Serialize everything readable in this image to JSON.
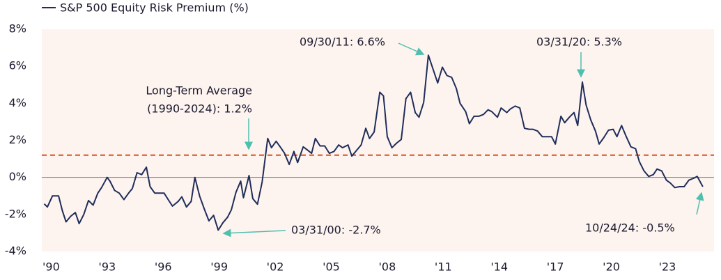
{
  "chart_data": {
    "type": "line",
    "series": [
      {
        "name": "S&P 500 Equity Risk Premium (%)",
        "color": "#1f2d5a",
        "x": [
          1989.63,
          1989.8,
          1990.07,
          1990.4,
          1990.6,
          1990.8,
          1991.05,
          1991.3,
          1991.5,
          1991.75,
          1992.0,
          1992.25,
          1992.5,
          1992.7,
          1993.0,
          1993.15,
          1993.4,
          1993.65,
          1993.9,
          1994.15,
          1994.35,
          1994.6,
          1994.85,
          1995.1,
          1995.3,
          1995.55,
          1995.8,
          1996.05,
          1996.3,
          1996.5,
          1996.8,
          1997.0,
          1997.25,
          1997.5,
          1997.7,
          1997.95,
          1998.2,
          1998.45,
          1998.7,
          1998.95,
          1999.2,
          1999.45,
          1999.65,
          1999.9,
          2000.15,
          2000.3,
          2000.6,
          2000.8,
          2001.05,
          2001.3,
          2001.6,
          2001.8,
          2002.05,
          2002.3,
          2002.5,
          2002.75,
          2003.0,
          2003.2,
          2003.5,
          2003.7,
          2003.95,
          2004.15,
          2004.4,
          2004.65,
          2004.9,
          2005.15,
          2005.4,
          2005.6,
          2005.9,
          2006.1,
          2006.35,
          2006.6,
          2006.85,
          2007.05,
          2007.3,
          2007.6,
          2007.8,
          2008.0,
          2008.25,
          2008.5,
          2008.75,
          2009.0,
          2009.25,
          2009.5,
          2009.7,
          2009.95,
          2010.2,
          2010.45,
          2010.7,
          2010.95,
          2011.2,
          2011.45,
          2011.7,
          2011.9,
          2012.2,
          2012.4,
          2012.65,
          2012.9,
          2013.15,
          2013.4,
          2013.6,
          2013.9,
          2014.1,
          2014.4,
          2014.6,
          2014.85,
          2015.1,
          2015.35,
          2015.6,
          2015.8,
          2016.05,
          2016.3,
          2016.55,
          2016.8,
          2017.0,
          2017.3,
          2017.5,
          2017.75,
          2018.0,
          2018.2,
          2018.45,
          2018.65,
          2018.9,
          2019.15,
          2019.35,
          2019.6,
          2019.85,
          2020.1,
          2020.3,
          2020.55,
          2020.8,
          2021.05,
          2021.3,
          2021.5,
          2021.75,
          2022.0,
          2022.25,
          2022.45,
          2022.7,
          2022.95,
          2023.15,
          2023.4,
          2023.65,
          2023.9,
          2024.15,
          2024.4,
          2024.6,
          2024.9
        ],
        "values": [
          -1.43,
          -1.6,
          -1.0,
          -1.0,
          -1.8,
          -2.4,
          -2.1,
          -1.9,
          -2.5,
          -2.0,
          -1.25,
          -1.5,
          -0.85,
          -0.55,
          0.0,
          -0.2,
          -0.7,
          -0.85,
          -1.2,
          -0.85,
          -0.6,
          0.25,
          0.15,
          0.55,
          -0.5,
          -0.85,
          -0.85,
          -0.85,
          -1.25,
          -1.55,
          -1.3,
          -1.05,
          -1.6,
          -1.3,
          0.0,
          -1.0,
          -1.7,
          -2.35,
          -2.05,
          -2.85,
          -2.45,
          -2.15,
          -1.75,
          -0.8,
          -0.2,
          -1.1,
          0.1,
          -1.15,
          -1.45,
          -0.25,
          2.1,
          1.6,
          1.95,
          1.6,
          1.3,
          0.7,
          1.4,
          0.8,
          1.65,
          1.5,
          1.3,
          2.1,
          1.7,
          1.7,
          1.3,
          1.4,
          1.75,
          1.6,
          1.75,
          1.15,
          1.45,
          1.75,
          2.65,
          2.1,
          2.45,
          4.6,
          4.4,
          2.2,
          1.6,
          1.85,
          2.05,
          4.25,
          4.6,
          3.5,
          3.25,
          4.05,
          6.6,
          5.85,
          5.1,
          5.95,
          5.5,
          5.4,
          4.8,
          4.0,
          3.55,
          2.9,
          3.3,
          3.3,
          3.4,
          3.65,
          3.55,
          3.25,
          3.75,
          3.5,
          3.7,
          3.85,
          3.75,
          2.65,
          2.6,
          2.6,
          2.5,
          2.2,
          2.2,
          2.2,
          1.8,
          3.3,
          2.95,
          3.25,
          3.5,
          2.8,
          5.15,
          3.9,
          3.1,
          2.5,
          1.8,
          2.15,
          2.55,
          2.6,
          2.2,
          2.8,
          2.2,
          1.65,
          1.55,
          0.85,
          0.35,
          0.05,
          0.15,
          0.45,
          0.35,
          -0.15,
          -0.3,
          -0.55,
          -0.5,
          -0.5,
          -0.15,
          -0.05,
          0.05,
          -0.5
        ]
      }
    ],
    "average": {
      "value": 1.2,
      "color": "#d9531e"
    },
    "annotations": [
      "09/30/11: 6.6%",
      [
        "Long-Term Average",
        "(1990-2024): 1.2%"
      ],
      "03/31/20: 5.3%",
      "03/31/00: -2.7%",
      "10/24/24: -0.5%"
    ],
    "xlim": [
      1989.5,
      2025.5
    ],
    "xticks": [
      {
        "value": 1990,
        "label": "'90"
      },
      {
        "value": 1993,
        "label": "'93"
      },
      {
        "value": 1996,
        "label": "'96"
      },
      {
        "value": 1999,
        "label": "'99"
      },
      {
        "value": 2002,
        "label": "'02"
      },
      {
        "value": 2005,
        "label": "'05"
      },
      {
        "value": 2008,
        "label": "'08"
      },
      {
        "value": 2011,
        "label": "'11"
      },
      {
        "value": 2014,
        "label": "'14"
      },
      {
        "value": 2017,
        "label": "'17"
      },
      {
        "value": 2020,
        "label": "'20"
      },
      {
        "value": 2023,
        "label": "'23"
      }
    ],
    "ylim": [
      -4,
      8
    ],
    "yticks": [
      {
        "value": 8,
        "label": "8%"
      },
      {
        "value": 6,
        "label": "6%"
      },
      {
        "value": 4,
        "label": "4%"
      },
      {
        "value": 2,
        "label": "2%"
      },
      {
        "value": 0,
        "label": "0%"
      },
      {
        "value": -2,
        "label": "-2%"
      },
      {
        "value": -4,
        "label": "-4%"
      }
    ],
    "zero_line": true,
    "grid": false,
    "legend": "top-left",
    "background": "#fdf3ef"
  }
}
